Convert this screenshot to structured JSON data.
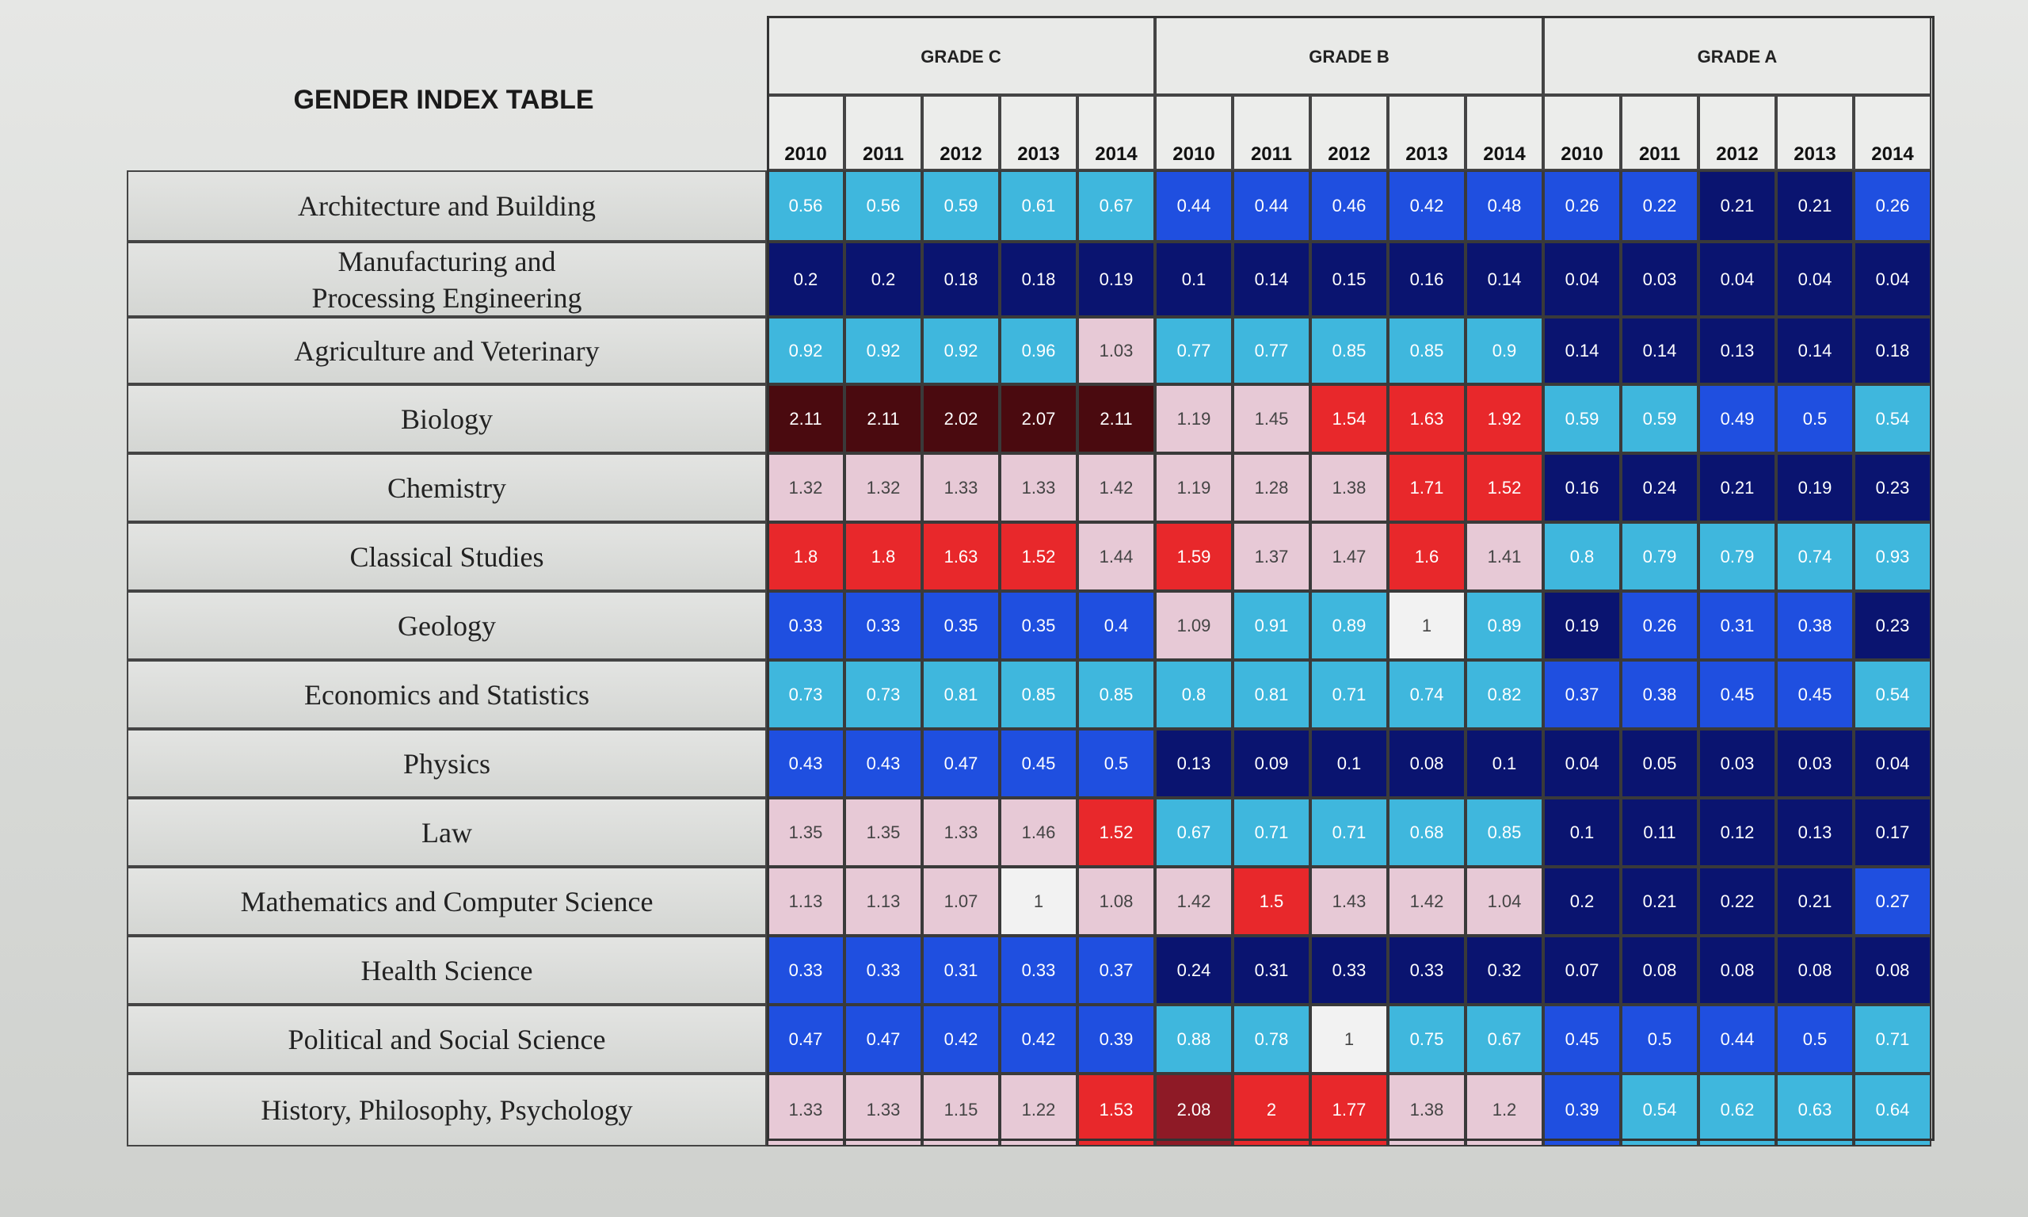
{
  "chart_data": {
    "type": "heatmap",
    "title": "GENDER INDEX TABLE",
    "grades": [
      "GRADE C",
      "GRADE B",
      "GRADE A"
    ],
    "years": [
      "2010",
      "2011",
      "2012",
      "2013",
      "2014"
    ],
    "rows": [
      "Architecture and Building",
      "Manufacturing and\nProcessing Engineering",
      "Agriculture and Veterinary",
      "Biology",
      "Chemistry",
      "Classical Studies",
      "Geology",
      "Economics and Statistics",
      "Physics",
      "Law",
      "Mathematics and Computer Science",
      "Health Science",
      "Political and Social Science",
      "History, Philosophy, Psychology"
    ],
    "values": [
      [
        "0.56",
        "0.56",
        "0.59",
        "0.61",
        "0.67",
        "0.44",
        "0.44",
        "0.46",
        "0.42",
        "0.48",
        "0.26",
        "0.22",
        "0.21",
        "0.21",
        "0.26"
      ],
      [
        "0.2",
        "0.2",
        "0.18",
        "0.18",
        "0.19",
        "0.1",
        "0.14",
        "0.15",
        "0.16",
        "0.14",
        "0.04",
        "0.03",
        "0.04",
        "0.04",
        "0.04"
      ],
      [
        "0.92",
        "0.92",
        "0.92",
        "0.96",
        "1.03",
        "0.77",
        "0.77",
        "0.85",
        "0.85",
        "0.9",
        "0.14",
        "0.14",
        "0.13",
        "0.14",
        "0.18"
      ],
      [
        "2.11",
        "2.11",
        "2.02",
        "2.07",
        "2.11",
        "1.19",
        "1.45",
        "1.54",
        "1.63",
        "1.92",
        "0.59",
        "0.59",
        "0.49",
        "0.5",
        "0.54"
      ],
      [
        "1.32",
        "1.32",
        "1.33",
        "1.33",
        "1.42",
        "1.19",
        "1.28",
        "1.38",
        "1.71",
        "1.52",
        "0.16",
        "0.24",
        "0.21",
        "0.19",
        "0.23"
      ],
      [
        "1.8",
        "1.8",
        "1.63",
        "1.52",
        "1.44",
        "1.59",
        "1.37",
        "1.47",
        "1.6",
        "1.41",
        "0.8",
        "0.79",
        "0.79",
        "0.74",
        "0.93"
      ],
      [
        "0.33",
        "0.33",
        "0.35",
        "0.35",
        "0.4",
        "1.09",
        "0.91",
        "0.89",
        "1",
        "0.89",
        "0.19",
        "0.26",
        "0.31",
        "0.38",
        "0.23"
      ],
      [
        "0.73",
        "0.73",
        "0.81",
        "0.85",
        "0.85",
        "0.8",
        "0.81",
        "0.71",
        "0.74",
        "0.82",
        "0.37",
        "0.38",
        "0.45",
        "0.45",
        "0.54"
      ],
      [
        "0.43",
        "0.43",
        "0.47",
        "0.45",
        "0.5",
        "0.13",
        "0.09",
        "0.1",
        "0.08",
        "0.1",
        "0.04",
        "0.05",
        "0.03",
        "0.03",
        "0.04"
      ],
      [
        "1.35",
        "1.35",
        "1.33",
        "1.46",
        "1.52",
        "0.67",
        "0.71",
        "0.71",
        "0.68",
        "0.85",
        "0.1",
        "0.11",
        "0.12",
        "0.13",
        "0.17"
      ],
      [
        "1.13",
        "1.13",
        "1.07",
        "1",
        "1.08",
        "1.42",
        "1.5",
        "1.43",
        "1.42",
        "1.04",
        "0.2",
        "0.21",
        "0.22",
        "0.21",
        "0.27"
      ],
      [
        "0.33",
        "0.33",
        "0.31",
        "0.33",
        "0.37",
        "0.24",
        "0.31",
        "0.33",
        "0.33",
        "0.32",
        "0.07",
        "0.08",
        "0.08",
        "0.08",
        "0.08"
      ],
      [
        "0.47",
        "0.47",
        "0.42",
        "0.42",
        "0.39",
        "0.88",
        "0.78",
        "1",
        "0.75",
        "0.67",
        "0.45",
        "0.5",
        "0.44",
        "0.5",
        "0.71"
      ],
      [
        "1.33",
        "1.33",
        "1.15",
        "1.22",
        "1.53",
        "2.08",
        "2",
        "1.77",
        "1.38",
        "1.2",
        "0.39",
        "0.54",
        "0.62",
        "0.63",
        "0.64"
      ]
    ],
    "cell_colors": [
      [
        "#3fb7dd",
        "#3fb7dd",
        "#3fb7dd",
        "#3fb7dd",
        "#3fb7dd",
        "#1f4fe0",
        "#1f4fe0",
        "#1f4fe0",
        "#1f4fe0",
        "#1f4fe0",
        "#1f4fe0",
        "#1f4fe0",
        "#0a1470",
        "#0a1470",
        "#1f4fe0"
      ],
      [
        "#0a1470",
        "#0a1470",
        "#0a1470",
        "#0a1470",
        "#0a1470",
        "#0a1470",
        "#0a1470",
        "#0a1470",
        "#0a1470",
        "#0a1470",
        "#0a1470",
        "#0a1470",
        "#0a1470",
        "#0a1470",
        "#0a1470"
      ],
      [
        "#3fb7dd",
        "#3fb7dd",
        "#3fb7dd",
        "#3fb7dd",
        "#e7c9d6",
        "#3fb7dd",
        "#3fb7dd",
        "#3fb7dd",
        "#3fb7dd",
        "#3fb7dd",
        "#0a1470",
        "#0a1470",
        "#0a1470",
        "#0a1470",
        "#0a1470"
      ],
      [
        "#4a0a0f",
        "#4a0a0f",
        "#4a0a0f",
        "#4a0a0f",
        "#4a0a0f",
        "#e7c9d6",
        "#e7c9d6",
        "#e8282b",
        "#e8282b",
        "#e8282b",
        "#3fb7dd",
        "#3fb7dd",
        "#1f4fe0",
        "#1f4fe0",
        "#3fb7dd"
      ],
      [
        "#e7c9d6",
        "#e7c9d6",
        "#e7c9d6",
        "#e7c9d6",
        "#e7c9d6",
        "#e7c9d6",
        "#e7c9d6",
        "#e7c9d6",
        "#e8282b",
        "#e8282b",
        "#0a1470",
        "#0a1470",
        "#0a1470",
        "#0a1470",
        "#0a1470"
      ],
      [
        "#e8282b",
        "#e8282b",
        "#e8282b",
        "#e8282b",
        "#e7c9d6",
        "#e8282b",
        "#e7c9d6",
        "#e7c9d6",
        "#e8282b",
        "#e7c9d6",
        "#3fb7dd",
        "#3fb7dd",
        "#3fb7dd",
        "#3fb7dd",
        "#3fb7dd"
      ],
      [
        "#1f4fe0",
        "#1f4fe0",
        "#1f4fe0",
        "#1f4fe0",
        "#1f4fe0",
        "#e7c9d6",
        "#3fb7dd",
        "#3fb7dd",
        "#f2f2f2",
        "#3fb7dd",
        "#0a1470",
        "#1f4fe0",
        "#1f4fe0",
        "#1f4fe0",
        "#0a1470"
      ],
      [
        "#3fb7dd",
        "#3fb7dd",
        "#3fb7dd",
        "#3fb7dd",
        "#3fb7dd",
        "#3fb7dd",
        "#3fb7dd",
        "#3fb7dd",
        "#3fb7dd",
        "#3fb7dd",
        "#1f4fe0",
        "#1f4fe0",
        "#1f4fe0",
        "#1f4fe0",
        "#3fb7dd"
      ],
      [
        "#1f4fe0",
        "#1f4fe0",
        "#1f4fe0",
        "#1f4fe0",
        "#1f4fe0",
        "#0a1470",
        "#0a1470",
        "#0a1470",
        "#0a1470",
        "#0a1470",
        "#0a1470",
        "#0a1470",
        "#0a1470",
        "#0a1470",
        "#0a1470"
      ],
      [
        "#e7c9d6",
        "#e7c9d6",
        "#e7c9d6",
        "#e7c9d6",
        "#e8282b",
        "#3fb7dd",
        "#3fb7dd",
        "#3fb7dd",
        "#3fb7dd",
        "#3fb7dd",
        "#0a1470",
        "#0a1470",
        "#0a1470",
        "#0a1470",
        "#0a1470"
      ],
      [
        "#e7c9d6",
        "#e7c9d6",
        "#e7c9d6",
        "#f2f2f2",
        "#e7c9d6",
        "#e7c9d6",
        "#e8282b",
        "#e7c9d6",
        "#e7c9d6",
        "#e7c9d6",
        "#0a1470",
        "#0a1470",
        "#0a1470",
        "#0a1470",
        "#1f4fe0"
      ],
      [
        "#1f4fe0",
        "#1f4fe0",
        "#1f4fe0",
        "#1f4fe0",
        "#1f4fe0",
        "#0a1470",
        "#0a1470",
        "#0a1470",
        "#0a1470",
        "#0a1470",
        "#0a1470",
        "#0a1470",
        "#0a1470",
        "#0a1470",
        "#0a1470"
      ],
      [
        "#1f4fe0",
        "#1f4fe0",
        "#1f4fe0",
        "#1f4fe0",
        "#1f4fe0",
        "#3fb7dd",
        "#3fb7dd",
        "#f2f2f2",
        "#3fb7dd",
        "#3fb7dd",
        "#1f4fe0",
        "#1f4fe0",
        "#1f4fe0",
        "#1f4fe0",
        "#3fb7dd"
      ],
      [
        "#e7c9d6",
        "#e7c9d6",
        "#e7c9d6",
        "#e7c9d6",
        "#e8282b",
        "#8e1a26",
        "#e8282b",
        "#e8282b",
        "#e7c9d6",
        "#e7c9d6",
        "#1f4fe0",
        "#3fb7dd",
        "#3fb7dd",
        "#3fb7dd",
        "#3fb7dd"
      ]
    ],
    "palette": {
      "dark_navy": "#0a1470",
      "royal_blue": "#1f4fe0",
      "cyan": "#3fb7dd",
      "neutral_white": "#f2f2f2",
      "pale_pink": "#e7c9d6",
      "red": "#e8282b",
      "dark_red": "#8e1a26",
      "darkest_red": "#4a0a0f"
    }
  }
}
